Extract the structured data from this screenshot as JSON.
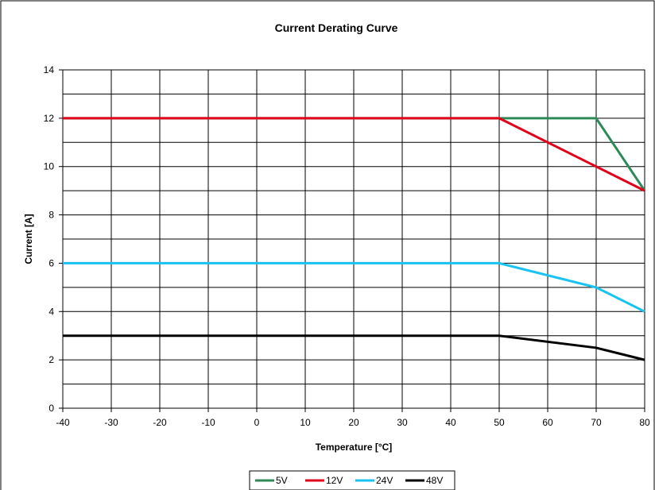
{
  "chart_data": {
    "type": "line",
    "title": "Current Derating Curve",
    "xlabel": "Temperature [°C]",
    "ylabel": "Current [A]",
    "xlim": [
      -40,
      80
    ],
    "ylim": [
      0,
      14
    ],
    "x_ticks": [
      -40,
      -30,
      -20,
      -10,
      0,
      10,
      20,
      30,
      40,
      50,
      60,
      70,
      80
    ],
    "y_ticks": [
      0,
      2,
      4,
      6,
      8,
      10,
      12,
      14
    ],
    "grid": true,
    "legend_position": "bottom",
    "series": [
      {
        "name": "5V",
        "color": "#2e8b57",
        "points": [
          [
            -40,
            12
          ],
          [
            50,
            12
          ],
          [
            70,
            12
          ],
          [
            80,
            9
          ]
        ]
      },
      {
        "name": "12V",
        "color": "#e3001b",
        "points": [
          [
            -40,
            12
          ],
          [
            50,
            12
          ],
          [
            70,
            10
          ],
          [
            80,
            9
          ]
        ]
      },
      {
        "name": "24V",
        "color": "#19c3f0",
        "points": [
          [
            -40,
            6
          ],
          [
            50,
            6
          ],
          [
            70,
            5
          ],
          [
            80,
            4
          ]
        ]
      },
      {
        "name": "48V",
        "color": "#000000",
        "points": [
          [
            -40,
            3
          ],
          [
            50,
            3
          ],
          [
            70,
            2.5
          ],
          [
            80,
            2
          ]
        ]
      }
    ]
  }
}
